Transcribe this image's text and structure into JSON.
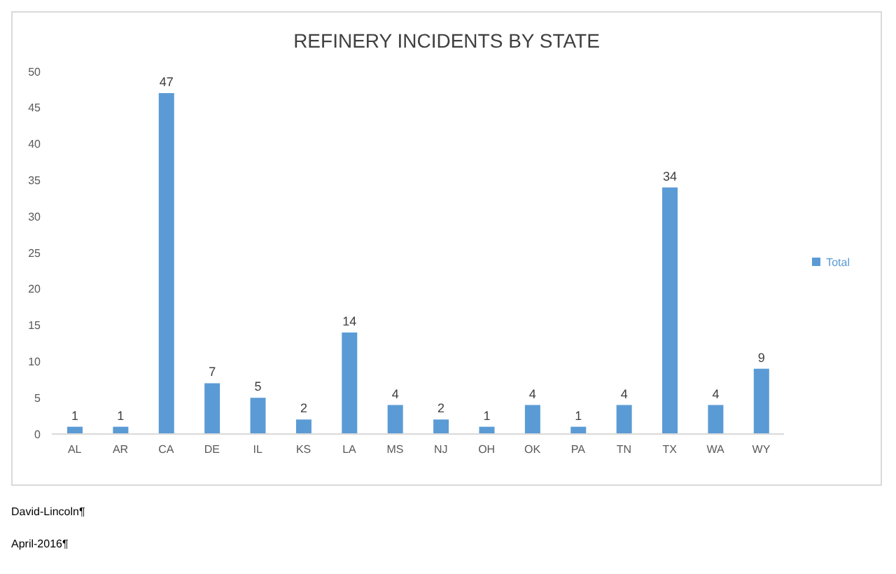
{
  "chart_data": {
    "type": "bar",
    "title": "REFINERY INCIDENTS BY STATE",
    "categories": [
      "AL",
      "AR",
      "CA",
      "DE",
      "IL",
      "KS",
      "LA",
      "MS",
      "NJ",
      "OH",
      "OK",
      "PA",
      "TN",
      "TX",
      "WA",
      "WY"
    ],
    "series": [
      {
        "name": "Total",
        "color": "#5b9bd5",
        "values": [
          1,
          1,
          47,
          7,
          5,
          2,
          14,
          4,
          2,
          1,
          4,
          1,
          4,
          34,
          4,
          9
        ]
      }
    ],
    "ylim": [
      0,
      50
    ],
    "yticks": [
      0,
      5,
      10,
      15,
      20,
      25,
      30,
      35,
      40,
      45,
      50
    ],
    "grid": false,
    "legend": "right",
    "data_labels": true,
    "annotations": [
      "David-Lincoln¶",
      "April-2016¶"
    ]
  }
}
